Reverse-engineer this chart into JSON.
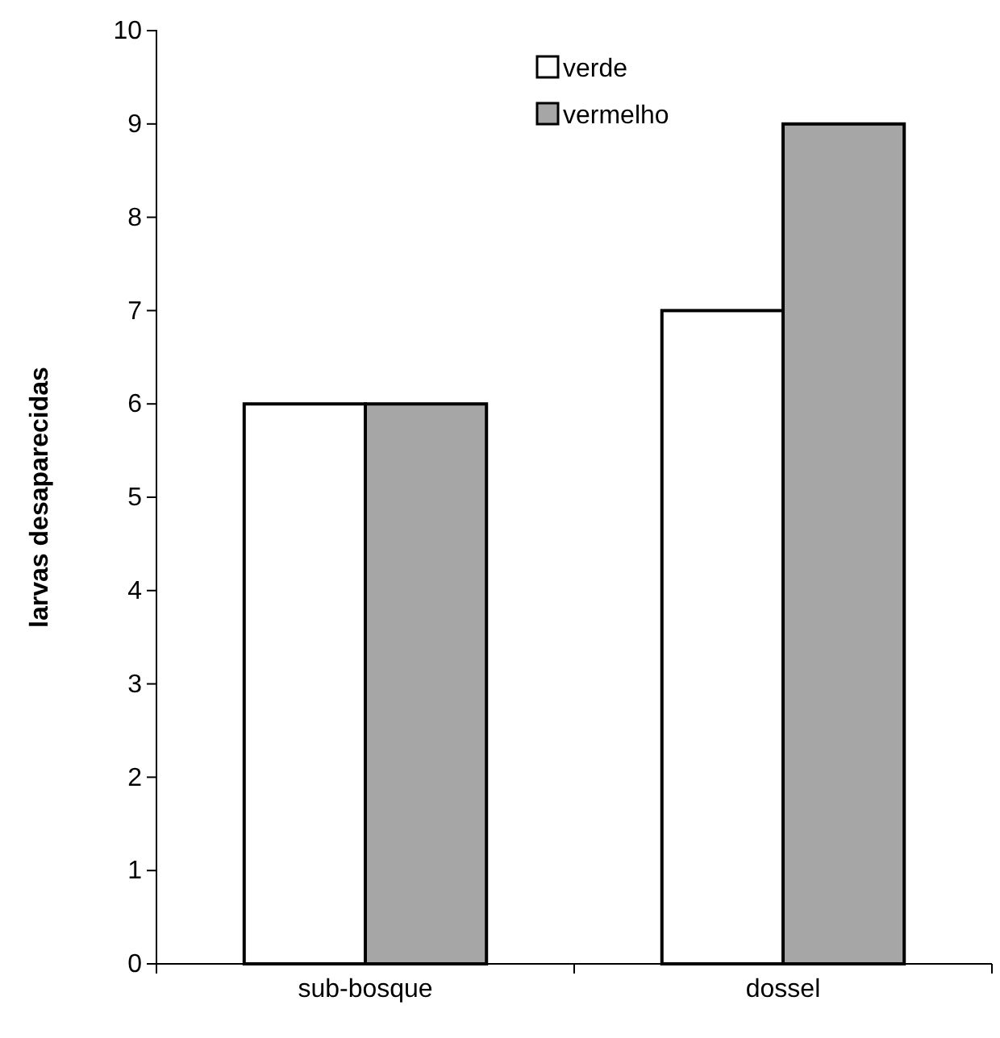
{
  "chart_data": {
    "type": "bar",
    "ylabel": "larvas desaparecidas",
    "categories": [
      "sub-bosque",
      "dossel"
    ],
    "series": [
      {
        "name": "verde",
        "color": "#ffffff",
        "values": [
          6,
          7
        ]
      },
      {
        "name": "vermelho",
        "color": "#a6a6a6",
        "values": [
          6,
          9
        ]
      }
    ],
    "ylim": [
      0,
      10
    ],
    "yticks": [
      0,
      1,
      2,
      3,
      4,
      5,
      6,
      7,
      8,
      9,
      10
    ],
    "grid": false,
    "legend": "top"
  }
}
